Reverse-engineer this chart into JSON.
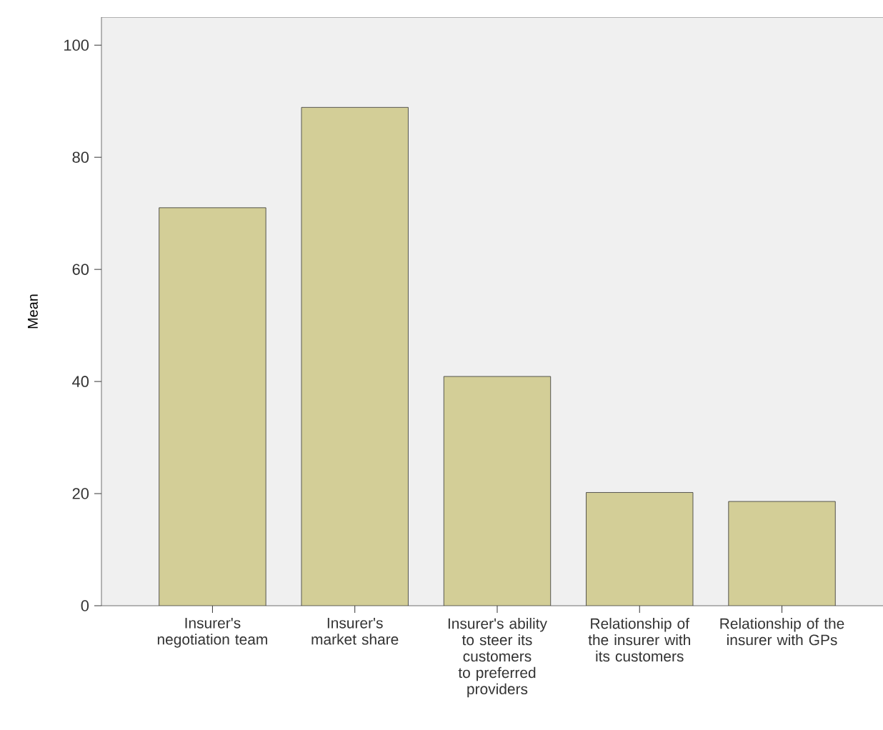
{
  "chart_data": {
    "type": "bar",
    "ylabel": "Mean",
    "categories": [
      "Insurer's negotiation team",
      "Insurer's market share",
      "Insurer's ability to steer its customers to preferred providers",
      "Relationship of the insurer with its customers",
      "Relationship of the insurer with GPs"
    ],
    "values": [
      71.0,
      88.9,
      40.9,
      20.2,
      18.6
    ],
    "color": "#d3ce97",
    "ylim": [
      0,
      105
    ],
    "yticks": [
      0,
      20,
      40,
      60,
      80,
      100
    ],
    "grid": false
  }
}
